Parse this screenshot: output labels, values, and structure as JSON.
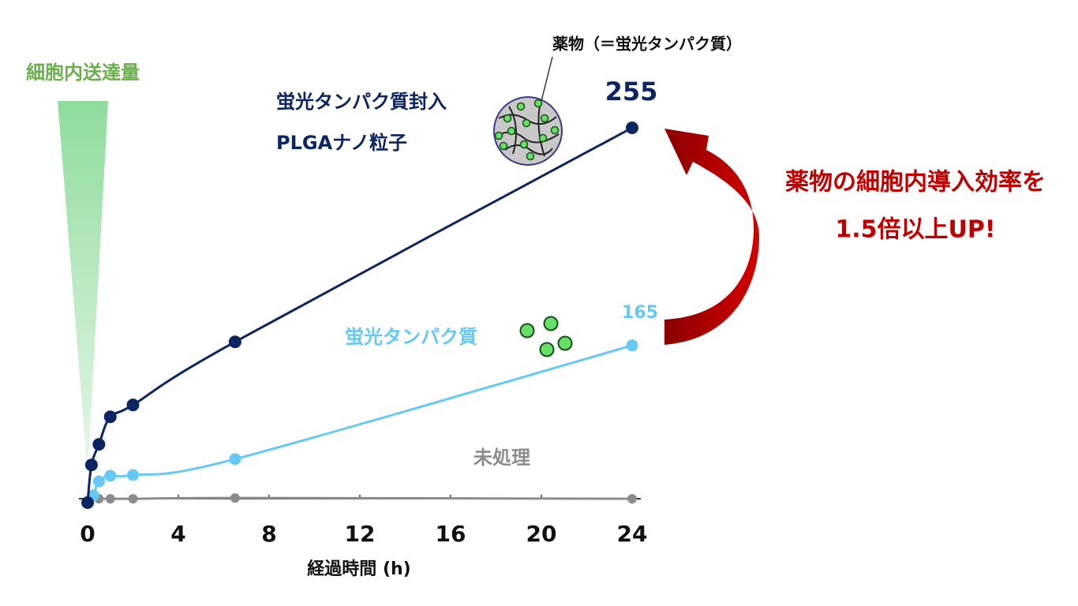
{
  "chart_data": {
    "type": "line",
    "y_axis_label": "細胞内送達量",
    "x_axis_label": "経過時間 (h)",
    "annotation_drug": "薬物（＝蛍光タンパク質）",
    "annotation_effect": [
      "薬物の細胞内導入効率を",
      "1.5倍以上UP!"
    ],
    "xlim": [
      0,
      24
    ],
    "xticks": [
      0,
      4,
      8,
      12,
      16,
      20,
      24
    ],
    "ylim": [
      100,
      270
    ],
    "series": [
      {
        "name": [
          "未処理"
        ],
        "color": "#8c8c8c",
        "x": [
          0.5,
          1,
          2,
          6.5,
          24
        ],
        "values": [
          101.6,
          101.6,
          101.6,
          101.9,
          101.6
        ]
      },
      {
        "name": [
          "蛍光タンパク質"
        ],
        "color": "#66c8f5",
        "x": [
          0,
          0.25,
          0.5,
          1,
          2,
          6.5,
          24
        ],
        "values": [
          100,
          103,
          108.8,
          111.1,
          111.4,
          118,
          165
        ],
        "value_labels": [
          null,
          null,
          null,
          null,
          null,
          null,
          "165"
        ]
      },
      {
        "name": [
          "蛍光タンパク質封入",
          "PLGAナノ粒子"
        ],
        "color": "#0d2463",
        "x": [
          0,
          0.17,
          0.5,
          1,
          2,
          6.5,
          24
        ],
        "values": [
          100,
          115.6,
          124.1,
          135.5,
          140.4,
          166.5,
          255
        ],
        "value_labels": [
          null,
          null,
          null,
          null,
          null,
          null,
          "255"
        ]
      }
    ]
  }
}
